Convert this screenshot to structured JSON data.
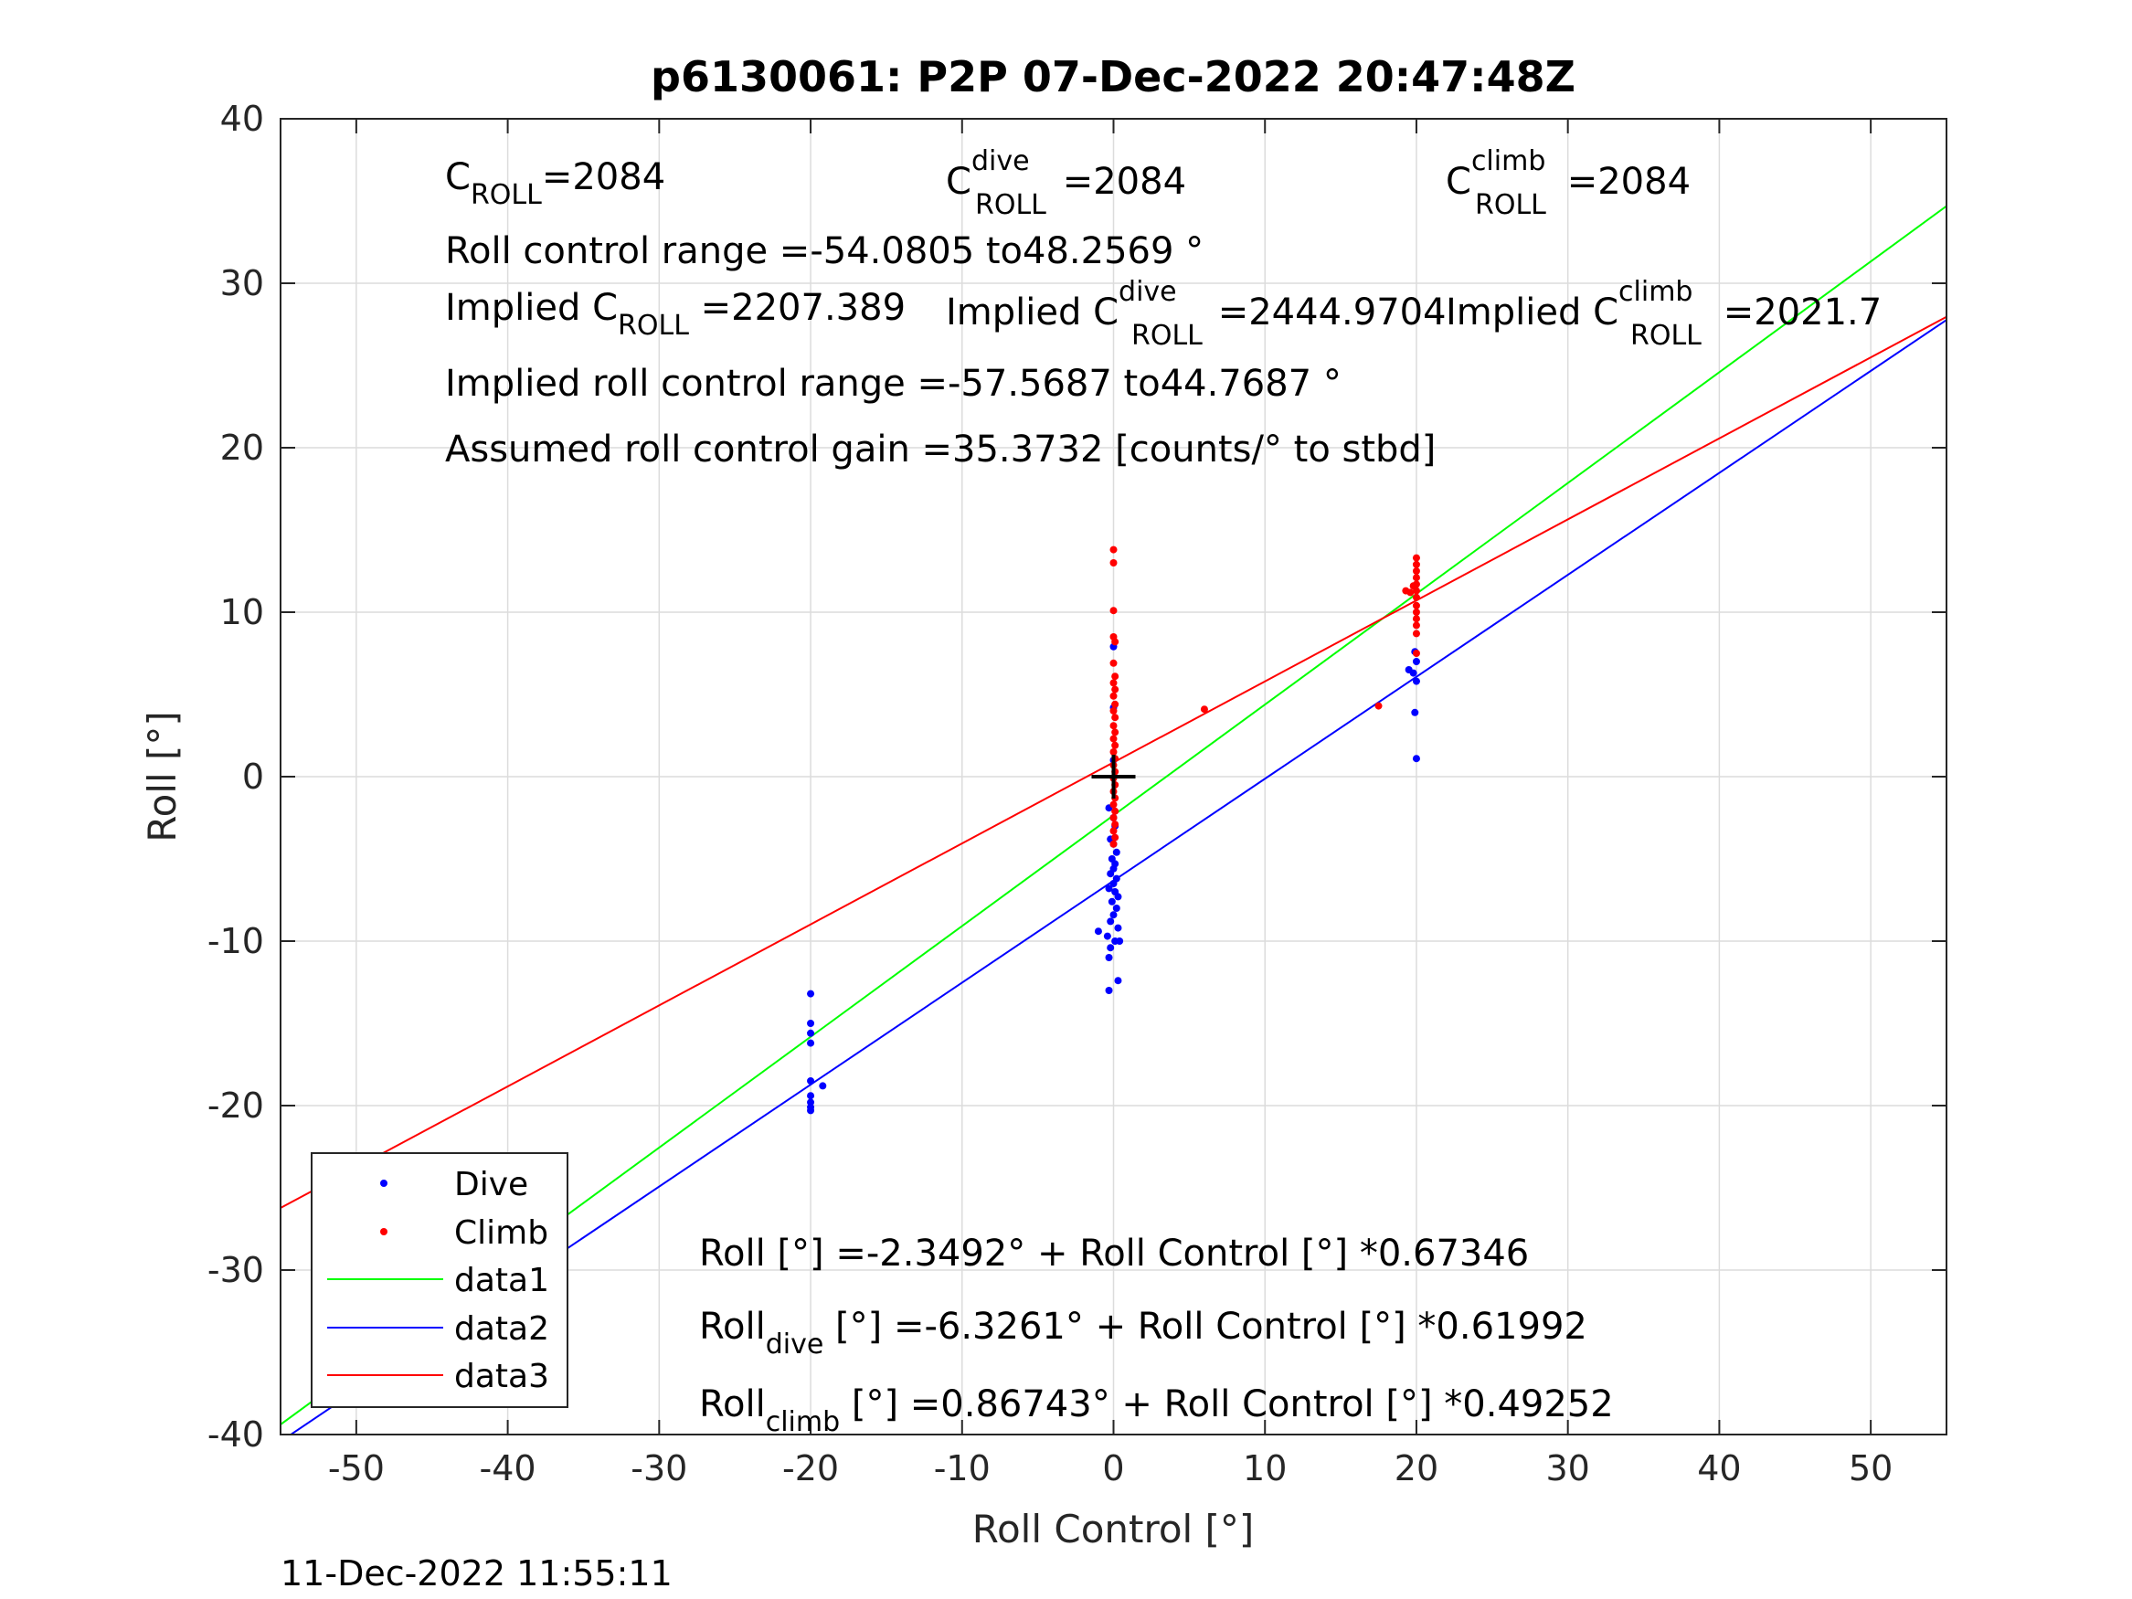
{
  "chart_data": {
    "type": "scatter",
    "title": "p6130061: P2P 07-Dec-2022 20:47:48Z",
    "xlabel": "Roll Control [°]",
    "ylabel": "Roll [°]",
    "xlim": [
      -55,
      55
    ],
    "ylim": [
      -40,
      40
    ],
    "grid": true,
    "legend_position": "bottom-left",
    "x_ticks": [
      "-50",
      "-40",
      "-30",
      "-20",
      "-10",
      "0",
      "10",
      "20",
      "30",
      "40",
      "50"
    ],
    "y_ticks": [
      "40",
      "30",
      "20",
      "10",
      "0",
      "-10",
      "-20",
      "-30",
      "-40"
    ],
    "legend": {
      "dive": "Dive",
      "climb": "Climb",
      "data1": "data1",
      "data2": "data2",
      "data3": "data3"
    },
    "series": [
      {
        "name": "Dive",
        "mode": "markers",
        "color": "#0000ff",
        "points": [
          [
            -20,
            -13.2
          ],
          [
            -20,
            -15.0
          ],
          [
            -20,
            -15.6
          ],
          [
            -20,
            -16.2
          ],
          [
            -20,
            -18.5
          ],
          [
            -20,
            -19.4
          ],
          [
            -20,
            -19.8
          ],
          [
            -20,
            -20.1
          ],
          [
            -20,
            -20.3
          ],
          [
            -19.2,
            -18.8
          ],
          [
            0,
            7.9
          ],
          [
            0,
            4.2
          ],
          [
            0,
            1.0
          ],
          [
            -0.3,
            -1.9
          ],
          [
            0,
            -2.5
          ],
          [
            0.1,
            -3.0
          ],
          [
            -0.2,
            -3.8
          ],
          [
            0,
            -4.1
          ],
          [
            0.2,
            -4.6
          ],
          [
            -0.1,
            -5.0
          ],
          [
            0.1,
            -5.3
          ],
          [
            0,
            -5.6
          ],
          [
            -0.2,
            -5.9
          ],
          [
            0.2,
            -6.2
          ],
          [
            0,
            -6.5
          ],
          [
            -0.3,
            -6.8
          ],
          [
            0.1,
            -7.0
          ],
          [
            0.3,
            -7.3
          ],
          [
            -0.1,
            -7.6
          ],
          [
            0.2,
            -8.0
          ],
          [
            0,
            -8.4
          ],
          [
            -0.2,
            -8.8
          ],
          [
            0.3,
            -9.2
          ],
          [
            -1,
            -9.4
          ],
          [
            -0.4,
            -9.7
          ],
          [
            0.1,
            -10.0
          ],
          [
            -0.2,
            -10.4
          ],
          [
            0.4,
            -10.0
          ],
          [
            -0.3,
            -11.0
          ],
          [
            0.3,
            -12.4
          ],
          [
            -0.3,
            -13.0
          ],
          [
            19.5,
            6.5
          ],
          [
            19.8,
            6.3
          ],
          [
            19.9,
            7.6
          ],
          [
            20,
            7.0
          ],
          [
            20,
            5.8
          ],
          [
            19.9,
            3.9
          ],
          [
            20,
            1.1
          ]
        ]
      },
      {
        "name": "Climb",
        "mode": "markers",
        "color": "#ff0000",
        "points": [
          [
            0,
            13.8
          ],
          [
            0,
            13.0
          ],
          [
            0,
            10.1
          ],
          [
            0,
            8.5
          ],
          [
            0.1,
            8.2
          ],
          [
            0,
            6.9
          ],
          [
            0.1,
            6.1
          ],
          [
            0,
            5.7
          ],
          [
            0.1,
            5.3
          ],
          [
            0,
            4.9
          ],
          [
            0.1,
            4.4
          ],
          [
            0,
            4.0
          ],
          [
            0.1,
            3.6
          ],
          [
            0,
            3.1
          ],
          [
            0.1,
            2.7
          ],
          [
            0,
            2.3
          ],
          [
            0.1,
            1.9
          ],
          [
            0,
            1.5
          ],
          [
            0.1,
            1.1
          ],
          [
            0,
            0.7
          ],
          [
            0.1,
            0.3
          ],
          [
            0,
            -0.1
          ],
          [
            0.1,
            -0.5
          ],
          [
            0,
            -0.9
          ],
          [
            0.1,
            -1.3
          ],
          [
            0,
            -1.7
          ],
          [
            0.1,
            -2.1
          ],
          [
            0,
            -2.5
          ],
          [
            0.1,
            -2.9
          ],
          [
            0,
            -3.3
          ],
          [
            0.1,
            -3.7
          ],
          [
            0,
            -4.1
          ],
          [
            6,
            4.1
          ],
          [
            17.5,
            4.3
          ],
          [
            19.3,
            11.3
          ],
          [
            19.6,
            11.2
          ],
          [
            19.8,
            11.6
          ],
          [
            20,
            13.3
          ],
          [
            20,
            12.9
          ],
          [
            20,
            12.5
          ],
          [
            20,
            12.1
          ],
          [
            20,
            11.7
          ],
          [
            20,
            11.3
          ],
          [
            20,
            10.9
          ],
          [
            20,
            10.4
          ],
          [
            20,
            10.0
          ],
          [
            20,
            9.6
          ],
          [
            20,
            9.2
          ],
          [
            20,
            8.7
          ],
          [
            20,
            7.5
          ]
        ]
      },
      {
        "name": "data1",
        "mode": "line",
        "color": "#00ff00",
        "intercept": -2.3492,
        "slope": 0.67346
      },
      {
        "name": "data2",
        "mode": "line",
        "color": "#0000ff",
        "intercept": -6.3261,
        "slope": 0.61992
      },
      {
        "name": "data3",
        "mode": "line",
        "color": "#ff0000",
        "intercept": 0.86743,
        "slope": 0.49252
      }
    ],
    "center_marker": [
      0,
      0
    ],
    "annotations": {
      "c_roll": {
        "base": "C",
        "sub": "ROLL",
        "value": "=2084"
      },
      "c_roll_dive": {
        "base": "C",
        "sup": "dive",
        "sub": "ROLL",
        "value": " =2084"
      },
      "c_roll_climb": {
        "base": "C",
        "sup": "climb",
        "sub": "ROLL",
        "value": " =2084"
      },
      "range": "Roll control range =-54.0805 to48.2569 °",
      "implied_c_roll": {
        "base": "Implied C",
        "sub": "ROLL",
        "value": " =2207.389"
      },
      "implied_c_roll_dive": {
        "base": "Implied C",
        "sup": "dive",
        "sub": "ROLL",
        "value": " =2444.9704"
      },
      "implied_c_roll_climb": {
        "base": "Implied C",
        "sup": "climb",
        "sub": "ROLL",
        "value": " =2021.7"
      },
      "implied_range": "Implied roll control range =-57.5687 to44.7687 °",
      "gain": "Assumed roll control gain =35.3732 [counts/° to stbd]",
      "fit_all": "Roll [°] =-2.3492° + Roll Control [°] *0.67346",
      "fit_dive": {
        "base": "Roll",
        "sub": "dive",
        "value": " [°] =-6.3261° + Roll Control [°] *0.61992"
      },
      "fit_climb": {
        "base": "Roll",
        "sub": "climb",
        "value": " [°] =0.86743° + Roll Control [°] *0.49252"
      }
    }
  },
  "footer_timestamp": "11-Dec-2022 11:55:11"
}
